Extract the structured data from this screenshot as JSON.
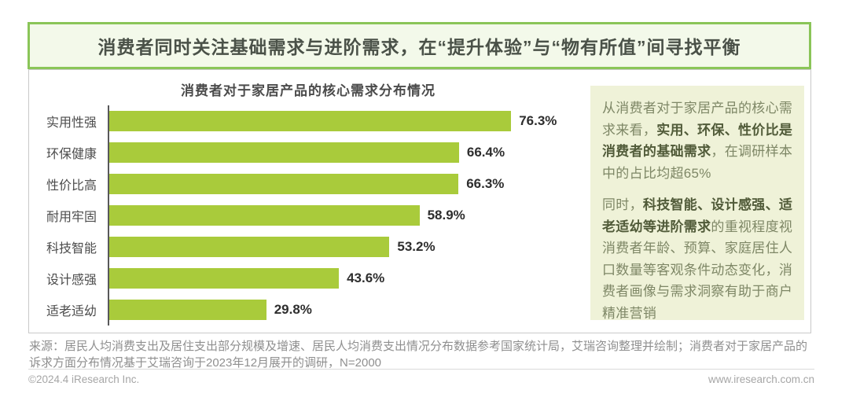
{
  "header": {
    "title": "消费者同时关注基础需求与进阶需求，在“提升体验”与“物有所值”间寻找平衡"
  },
  "chart_data": {
    "type": "bar",
    "orientation": "horizontal",
    "title": "消费者对于家居产品的核心需求分布情况",
    "categories": [
      "实用性强",
      "环保健康",
      "性价比高",
      "耐用牢固",
      "科技智能",
      "设计感强",
      "适老适幼"
    ],
    "values": [
      76.3,
      66.4,
      66.3,
      58.9,
      53.2,
      43.6,
      29.8
    ],
    "value_labels": [
      "76.3%",
      "66.4%",
      "66.3%",
      "58.9%",
      "53.2%",
      "43.6%",
      "29.8%"
    ],
    "xlim": [
      0,
      100
    ],
    "grid": false,
    "legend": "none",
    "bar_color": "#A9CB3B"
  },
  "insight": {
    "paragraphs": [
      {
        "segments": [
          {
            "text": "从消费者对于家居产品的核心需求来看，",
            "bold": false
          },
          {
            "text": "实用、环保、性价比是消费者的基础需求",
            "bold": true
          },
          {
            "text": "，在调研样本中的占比均超65%",
            "bold": false
          }
        ]
      },
      {
        "segments": [
          {
            "text": "同时，",
            "bold": false
          },
          {
            "text": "科技智能、设计感强、适老适幼等进阶需求",
            "bold": true
          },
          {
            "text": "的重视程度视消费者年龄、预算、家庭居住人口数量等客观条件动态变化，消费者画像与需求洞察有助于商户精准营销",
            "bold": false
          }
        ]
      }
    ]
  },
  "footer": {
    "source": "来源：居民人均消费支出及居住支出部分规模及增速、居民人均消费支出情况分布数据参考国家统计局，艾瑞咨询整理并绘制；消费者对于家居产品的诉求方面分布情况基于艾瑞咨询于2023年12月展开的调研，N=2000",
    "copyright": "©2024.4 iResearch Inc.",
    "website": "www.iresearch.com.cn"
  },
  "colors": {
    "header_border": "#8AC558",
    "header_bg": "#F3F9EA",
    "header_text": "#4A5148",
    "bar_green": "#A9CB3B",
    "panel_bg": "#EFF2D8",
    "panel_text": "#7E8766",
    "panel_bold": "#515B39",
    "frame_border": "#C9C9C9",
    "axis_gray": "#58585A",
    "source_gray": "#8F8F8F",
    "foot_gray": "#A6A6A6"
  }
}
